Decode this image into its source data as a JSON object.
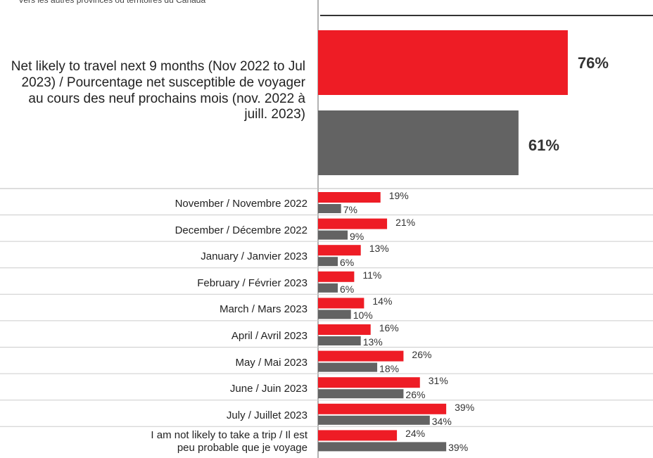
{
  "chart_data": {
    "type": "bar",
    "orientation": "horizontal",
    "categories": [
      "Net likely to travel next 9 months (Nov 2022 to Jul 2023) / Pourcentage net susceptible de voyager au cours des neuf prochains mois (nov. 2022 à juill. 2023)",
      "November / Novembre 2022",
      "December / Décembre 2022",
      "January / Janvier 2023",
      "February / Février  2023",
      "March / Mars  2023",
      "April / Avril  2023",
      "May / Mai  2023",
      "June / Juin 2023",
      "July / Juillet 2023",
      "I am not likely to take a trip / Il est peu probable que je voyage"
    ],
    "series": [
      {
        "color": "#ee1c25",
        "values": [
          76,
          19,
          21,
          13,
          11,
          14,
          16,
          26,
          31,
          39,
          24
        ],
        "value_labels": [
          "76%",
          "19%",
          "21%",
          "13%",
          "11%",
          "14%",
          "16%",
          "26%",
          "31%",
          "39%",
          "24%"
        ]
      },
      {
        "name": "Vers les autres provinces ou territoires du Canada",
        "color": "#636363",
        "values": [
          61,
          7,
          9,
          6,
          6,
          10,
          13,
          18,
          26,
          34,
          39
        ],
        "value_labels": [
          "61%",
          "7%",
          "9%",
          "6%",
          "6%",
          "10%",
          "13%",
          "18%",
          "26%",
          "34%",
          "39%"
        ]
      }
    ],
    "xlim": [
      0,
      100
    ]
  }
}
